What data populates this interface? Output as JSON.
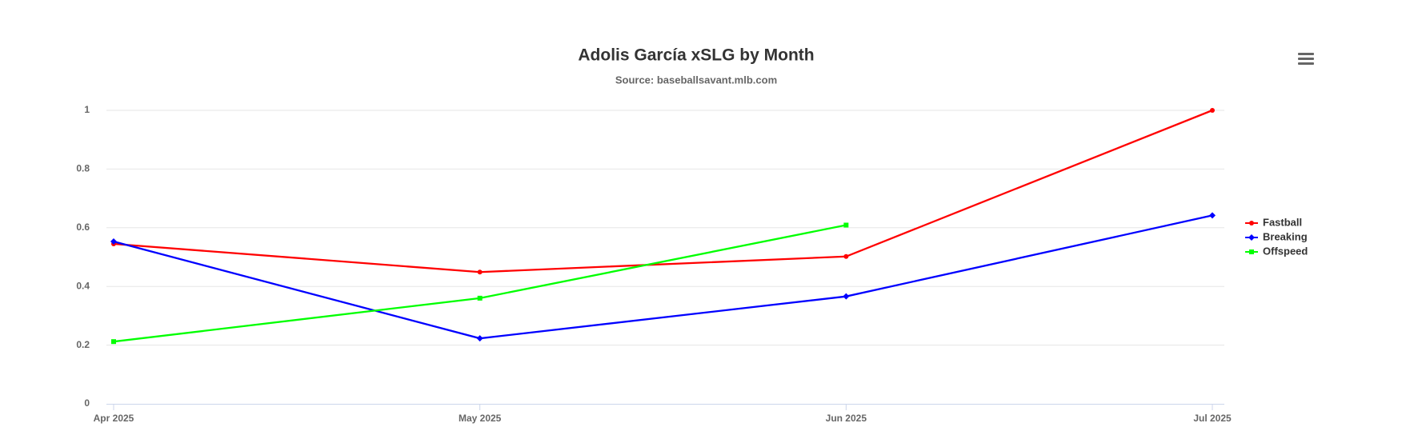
{
  "chart_data": {
    "type": "line",
    "title": "Adolis García xSLG by Month",
    "subtitle": "Source: baseballsavant.mlb.com",
    "categories": [
      "Apr 2025",
      "May 2025",
      "Jun 2025",
      "Jul 2025"
    ],
    "series": [
      {
        "name": "Fastball",
        "color": "#ff0000",
        "values": [
          0.545,
          0.449,
          0.502,
          1.0
        ]
      },
      {
        "name": "Breaking",
        "color": "#0000ff",
        "values": [
          0.553,
          0.223,
          0.366,
          0.642
        ]
      },
      {
        "name": "Offspeed",
        "color": "#00ff00",
        "values": [
          0.212,
          0.36,
          0.609,
          null
        ]
      }
    ],
    "ylim": [
      0,
      1
    ],
    "yticks": [
      0,
      0.2,
      0.4,
      0.6,
      0.8,
      1
    ],
    "grid": true,
    "legend": "right"
  }
}
